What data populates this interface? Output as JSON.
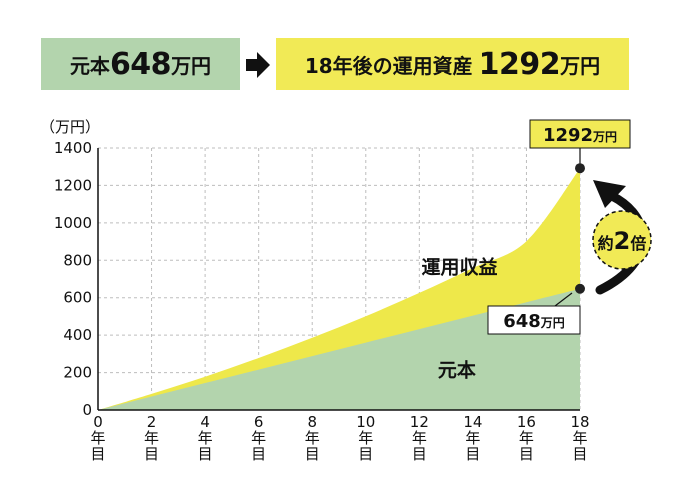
{
  "header": {
    "principal_prefix": "元本",
    "principal_value": "648",
    "principal_unit": "万円",
    "result_prefix": "18年後の運用資産",
    "result_value": "1292",
    "result_unit": "万円"
  },
  "chart_data": {
    "type": "area",
    "unit_label": "（万円）",
    "x": [
      0,
      2,
      4,
      6,
      8,
      10,
      12,
      14,
      16,
      18
    ],
    "x_tick_labels": [
      "0",
      "2",
      "4",
      "6",
      "8",
      "10",
      "12",
      "14",
      "16",
      "18"
    ],
    "x_suffix": [
      "年",
      "目"
    ],
    "ylim": [
      0,
      1400
    ],
    "y_ticks": [
      0,
      200,
      400,
      600,
      800,
      1000,
      1200,
      1400
    ],
    "grid": true,
    "series": [
      {
        "name": "運用収益",
        "values": [
          0,
          86,
          178,
          278,
          386,
          501,
          626,
          759,
          902,
          1292
        ],
        "color": "#eee84a"
      },
      {
        "name": "元本",
        "values": [
          0,
          72,
          144,
          216,
          288,
          360,
          432,
          504,
          576,
          648
        ],
        "color": "#b3d4ad"
      }
    ],
    "annotations": {
      "end_total": {
        "value": "1292",
        "unit": "万円"
      },
      "end_principal": {
        "value": "648",
        "unit": "万円"
      },
      "ratio": {
        "prefix": "約",
        "value": "2",
        "suffix": "倍"
      }
    }
  }
}
